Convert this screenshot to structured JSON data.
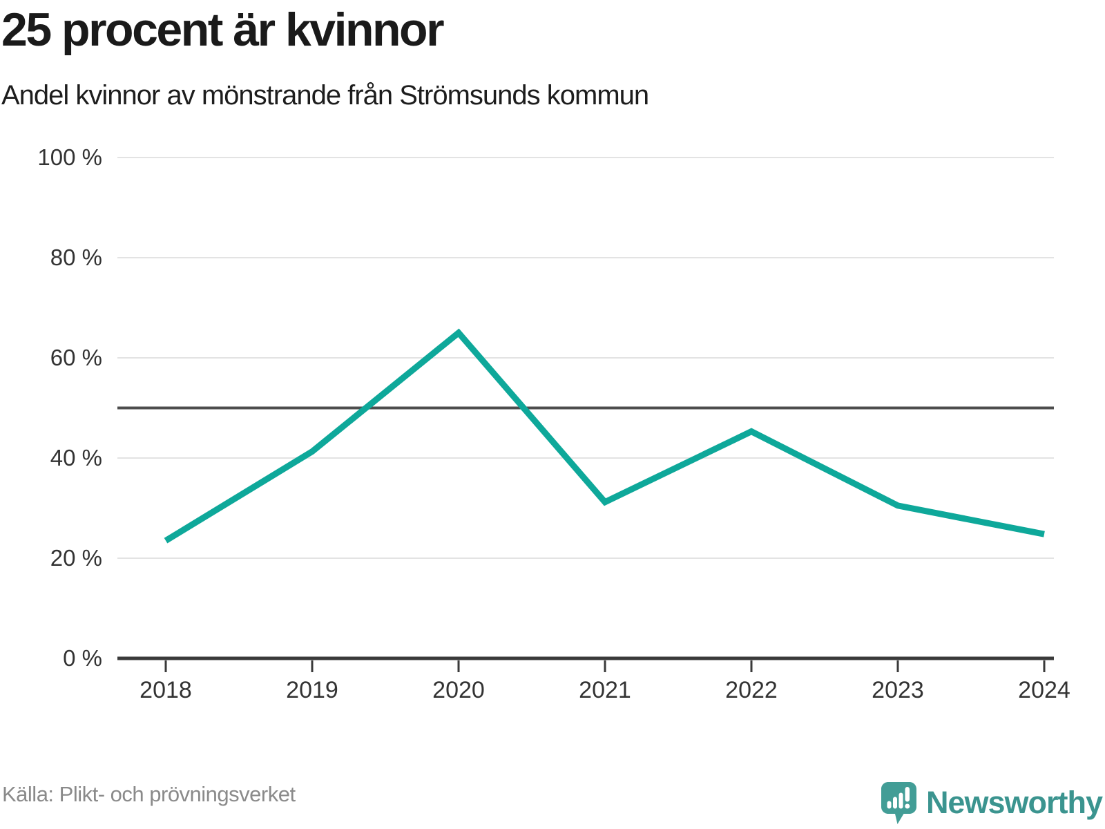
{
  "header": {
    "title": "25 procent är kvinnor",
    "subtitle": "Andel kvinnor av mönstrande från Strömsunds kommun"
  },
  "chart_data": {
    "type": "line",
    "title": "25 procent är kvinnor",
    "subtitle": "Andel kvinnor av mönstrande från Strömsunds kommun",
    "x": [
      "2018",
      "2019",
      "2020",
      "2021",
      "2022",
      "2023",
      "2024"
    ],
    "series": [
      {
        "name": "Andel kvinnor av mönstrande",
        "values": [
          23.5,
          41.3,
          65.0,
          31.2,
          45.3,
          30.5,
          24.8
        ]
      }
    ],
    "ylim": [
      0,
      100
    ],
    "y_ticks": [
      0,
      20,
      40,
      60,
      80,
      100
    ],
    "y_tick_suffix": " %",
    "reference_line_y": 50,
    "grid": "horizontal",
    "legend": "none",
    "line_color": "#0ea89a",
    "reference_line_color": "#4d4d4d",
    "gridline_color": "#e3e3e3",
    "axis_color": "#3a3a3a",
    "tick_label_color": "#333333"
  },
  "footer": {
    "source": "Källa: Plikt- och prövningsverket",
    "brand": "Newsworthy",
    "brand_color": "#3b948f",
    "logo_color": "#429d96"
  }
}
